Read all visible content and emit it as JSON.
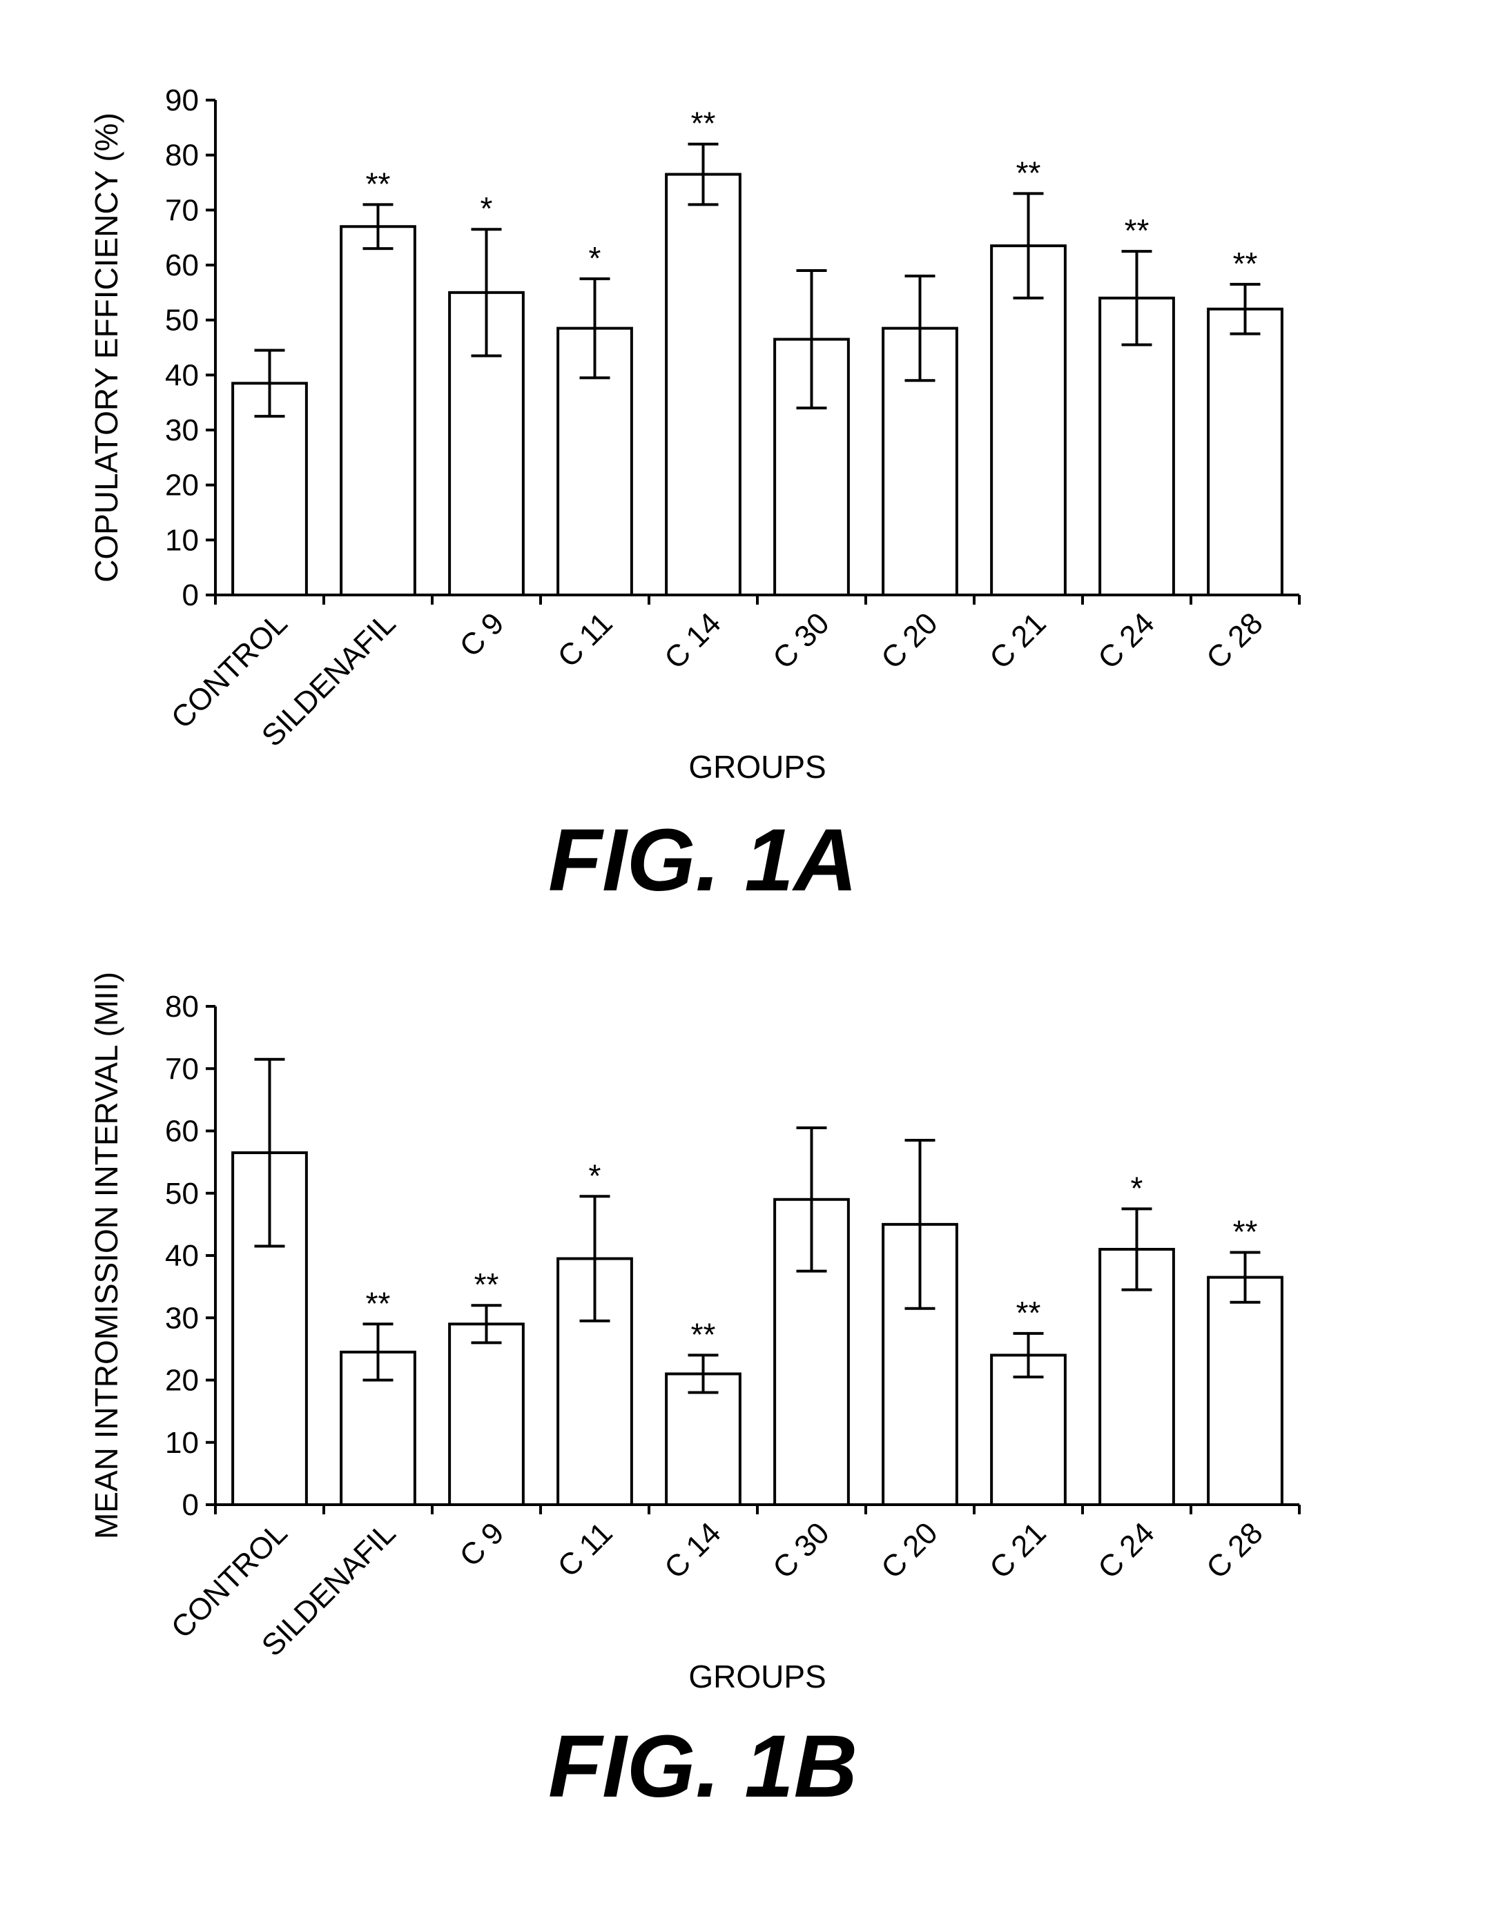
{
  "chart_data": [
    {
      "type": "bar",
      "figure_label": "FIG. 1A",
      "xlabel": "GROUPS",
      "ylabel": "COPULATORY EFFICIENCY (%)",
      "ylim": [
        0,
        90
      ],
      "yticks": [
        0,
        10,
        20,
        30,
        40,
        50,
        60,
        70,
        80,
        90
      ],
      "categories": [
        "CONTROL",
        "SILDENAFIL",
        "C 9",
        "C 11",
        "C 14",
        "C 30",
        "C 20",
        "C 21",
        "C 24",
        "C 28"
      ],
      "values": [
        38.5,
        67,
        55,
        48.5,
        76.5,
        46.5,
        48.5,
        63.5,
        54,
        52
      ],
      "errors": [
        6,
        4,
        11.5,
        9,
        5.5,
        12.5,
        9.5,
        9.5,
        8.5,
        4.5
      ],
      "significance": [
        "",
        "**",
        "*",
        "*",
        "**",
        "",
        "",
        "**",
        "**",
        "**"
      ],
      "grid": false,
      "legend": "none",
      "bar_fill": "#ffffff",
      "bar_stroke": "#000000"
    },
    {
      "type": "bar",
      "figure_label": "FIG. 1B",
      "xlabel": "GROUPS",
      "ylabel": "MEAN INTROMISSION INTERVAL (MII)",
      "ylim": [
        0,
        80
      ],
      "yticks": [
        0,
        10,
        20,
        30,
        40,
        50,
        60,
        70,
        80
      ],
      "categories": [
        "CONTROL",
        "SILDENAFIL",
        "C 9",
        "C 11",
        "C 14",
        "C 30",
        "C 20",
        "C 21",
        "C 24",
        "C 28"
      ],
      "values": [
        56.5,
        24.5,
        29,
        39.5,
        21,
        49,
        45,
        24,
        41,
        36.5
      ],
      "errors": [
        15,
        4.5,
        3,
        10,
        3,
        11.5,
        13.5,
        3.5,
        6.5,
        4
      ],
      "significance": [
        "",
        "**",
        "**",
        "*",
        "**",
        "",
        "",
        "**",
        "*",
        "**"
      ],
      "grid": false,
      "legend": "none",
      "bar_fill": "#ffffff",
      "bar_stroke": "#000000"
    }
  ]
}
